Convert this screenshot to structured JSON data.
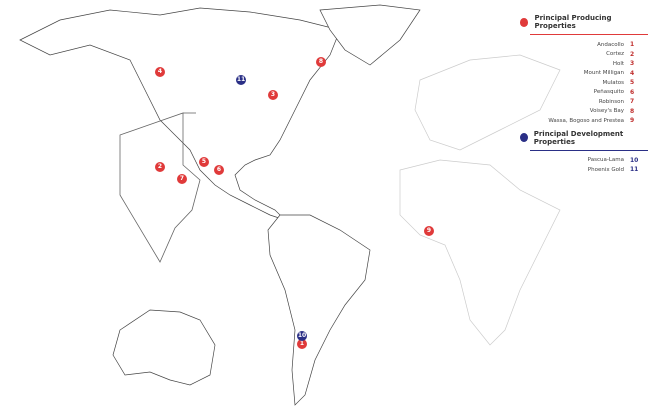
{
  "legend": {
    "producing": {
      "title": "Principal Producing Properties",
      "color": "#e03a3a",
      "items": [
        {
          "name": "Andacollo",
          "num": "1"
        },
        {
          "name": "Cortez",
          "num": "2"
        },
        {
          "name": "Holt",
          "num": "3"
        },
        {
          "name": "Mount Milligan",
          "num": "4"
        },
        {
          "name": "Mulatos",
          "num": "5"
        },
        {
          "name": "Peñasquito",
          "num": "6"
        },
        {
          "name": "Robinson",
          "num": "7"
        },
        {
          "name": "Voisey's Bay",
          "num": "8"
        },
        {
          "name": "Wassa, Bogoso and Prestea",
          "num": "9"
        }
      ]
    },
    "development": {
      "title": "Principal Development Properties",
      "color": "#2a2f86",
      "items": [
        {
          "name": "Pascua-Lama",
          "num": "10"
        },
        {
          "name": "Phoenix Gold",
          "num": "11"
        }
      ]
    }
  },
  "markers": [
    {
      "num": "1",
      "type": "producing"
    },
    {
      "num": "2",
      "type": "producing"
    },
    {
      "num": "3",
      "type": "producing"
    },
    {
      "num": "4",
      "type": "producing"
    },
    {
      "num": "5",
      "type": "producing"
    },
    {
      "num": "6",
      "type": "producing"
    },
    {
      "num": "7",
      "type": "producing"
    },
    {
      "num": "8",
      "type": "producing"
    },
    {
      "num": "9",
      "type": "producing"
    },
    {
      "num": "10",
      "type": "development"
    },
    {
      "num": "11",
      "type": "development"
    }
  ]
}
